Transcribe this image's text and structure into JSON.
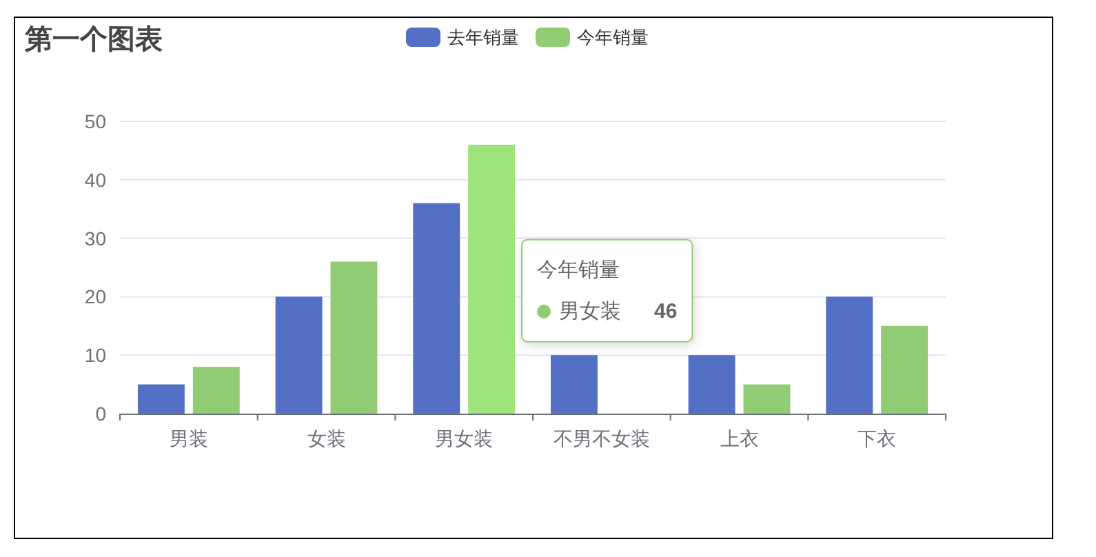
{
  "chart_data": {
    "type": "bar",
    "title": "第一个图表",
    "categories": [
      "男装",
      "女装",
      "男女装",
      "不男不女装",
      "上衣",
      "下衣"
    ],
    "series": [
      {
        "name": "去年销量",
        "color": "#5470c6",
        "values": [
          5,
          20,
          36,
          10,
          10,
          20
        ]
      },
      {
        "name": "今年销量",
        "color": "#91cc75",
        "colors": [
          "#91cc75",
          "#91cc75",
          "#9de47a",
          null,
          "#91cc75",
          "#91cc75"
        ],
        "values": [
          8,
          26,
          46,
          null,
          5,
          15
        ]
      }
    ],
    "ylim": [
      0,
      50
    ],
    "yticks": [
      0,
      10,
      20,
      30,
      40,
      50
    ],
    "grid": "y",
    "legend": "top",
    "annotations": [
      "今年销量",
      "男女装",
      "46"
    ]
  }
}
